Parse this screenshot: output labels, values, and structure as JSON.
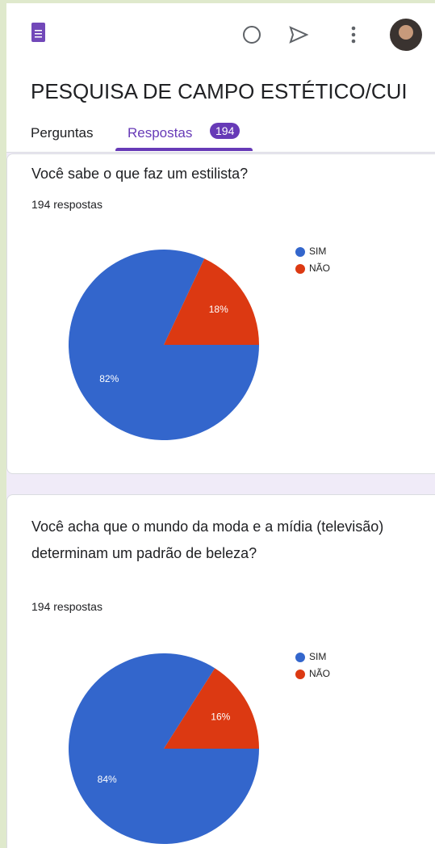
{
  "header": {
    "title": "PESQUISA DE CAMPO ESTÉTICO/CUI"
  },
  "tabs": {
    "items": [
      "Perguntas",
      "Respostas"
    ],
    "badge": "194"
  },
  "chart_data": [
    {
      "type": "pie",
      "title": "Você sabe o que faz um estilista?",
      "subtitle": "194 respostas",
      "categories": [
        "SIM",
        "NÃO"
      ],
      "values": [
        82,
        18
      ],
      "value_labels": [
        "82%",
        "18%"
      ],
      "colors": [
        "#3366cc",
        "#dc3912"
      ],
      "legend": "top-right"
    },
    {
      "type": "pie",
      "title": "Você acha que o mundo da moda e a mídia (televisão) determinam um padrão de beleza?",
      "subtitle": "194 respostas",
      "categories": [
        "SIM",
        "NÃO"
      ],
      "values": [
        84,
        16
      ],
      "value_labels": [
        "84%",
        "16%"
      ],
      "colors": [
        "#3366cc",
        "#dc3912"
      ],
      "legend": "top-right"
    }
  ]
}
